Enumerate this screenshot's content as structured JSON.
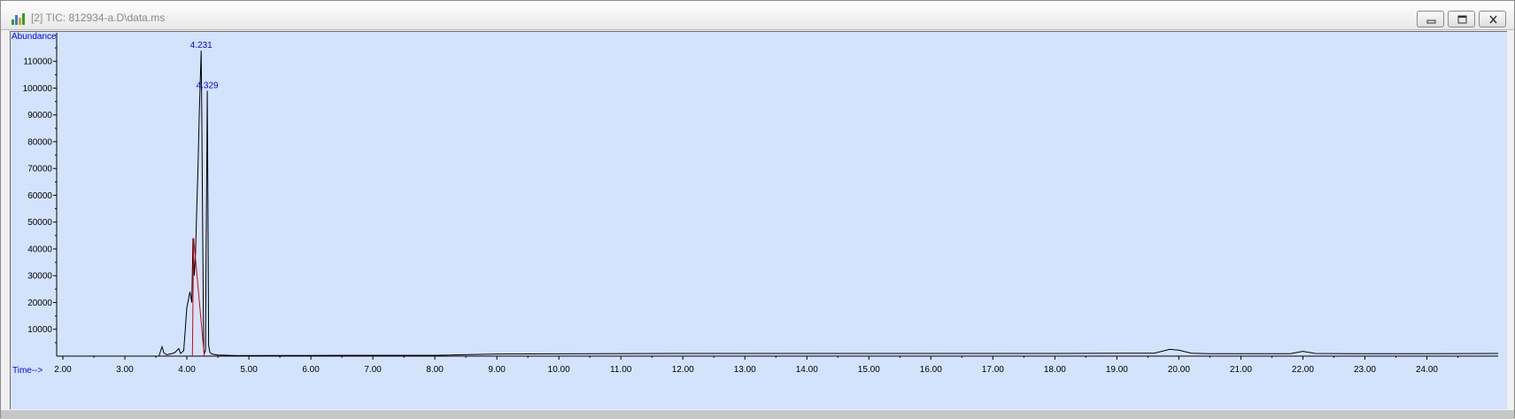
{
  "window": {
    "title": "[2] TIC: 812934-a.D\\data.ms",
    "buttons": [
      "minimize",
      "restore",
      "close"
    ]
  },
  "icons": {
    "app": "chromatogram-app-icon",
    "minimize": "minimize-icon",
    "restore": "restore-icon",
    "close": "close-icon"
  },
  "colors": {
    "plot_background": "#d3e3fd",
    "trace": "#000000",
    "baseline": "#e00000",
    "label_text": "#0000ff"
  },
  "chart_data": {
    "type": "line",
    "ylabel": "Abundance",
    "xlabel": "Time-->",
    "xlim": [
      1.9,
      25.15
    ],
    "ylim": [
      0,
      118000
    ],
    "x_ticks": [
      "2.00",
      "3.00",
      "4.00",
      "5.00",
      "6.00",
      "7.00",
      "8.00",
      "9.00",
      "10.00",
      "11.00",
      "12.00",
      "13.00",
      "14.00",
      "15.00",
      "16.00",
      "17.00",
      "18.00",
      "19.00",
      "20.00",
      "21.00",
      "22.00",
      "23.00",
      "24.00"
    ],
    "y_ticks": [
      "10000",
      "20000",
      "30000",
      "40000",
      "50000",
      "60000",
      "70000",
      "80000",
      "90000",
      "100000",
      "110000"
    ],
    "grid": false,
    "series": [
      {
        "x": [
          1.9,
          3.55,
          3.6,
          3.63,
          3.68,
          3.8,
          3.87,
          3.9,
          3.95,
          4.0,
          4.05,
          4.08,
          4.1,
          4.12,
          4.14,
          4.16,
          4.18,
          4.2,
          4.22,
          4.231,
          4.24,
          4.26,
          4.27,
          4.28,
          4.3,
          4.31,
          4.32,
          4.329,
          4.34,
          4.35,
          4.37,
          4.4,
          4.5,
          4.8,
          6.0,
          8.0,
          9.0,
          12.0,
          15.0,
          18.0,
          19.6,
          19.85,
          20.0,
          20.2,
          20.5,
          21.8,
          22.0,
          22.2,
          23.0,
          24.0,
          25.15
        ],
        "y": [
          0,
          0,
          3500,
          1200,
          500,
          1200,
          2800,
          1000,
          2000,
          18000,
          24000,
          20000,
          44000,
          30000,
          38000,
          55000,
          70000,
          90000,
          105000,
          114000,
          90000,
          30000,
          3000,
          1000,
          2000,
          40000,
          70000,
          99000,
          54000,
          4000,
          1500,
          800,
          400,
          200,
          250,
          300,
          800,
          1000,
          1000,
          1000,
          1100,
          2500,
          2200,
          1100,
          900,
          900,
          1800,
          1000,
          900,
          900,
          1000
        ]
      }
    ],
    "peak_labels": [
      {
        "text": "4.231",
        "x": 4.231,
        "y": 114000
      },
      {
        "text": "4.329",
        "x": 4.329,
        "y": 99000
      }
    ],
    "baseline_segments": [
      {
        "x": [
          4.09,
          4.11,
          4.28
        ],
        "y": [
          0,
          44000,
          0
        ]
      }
    ]
  }
}
